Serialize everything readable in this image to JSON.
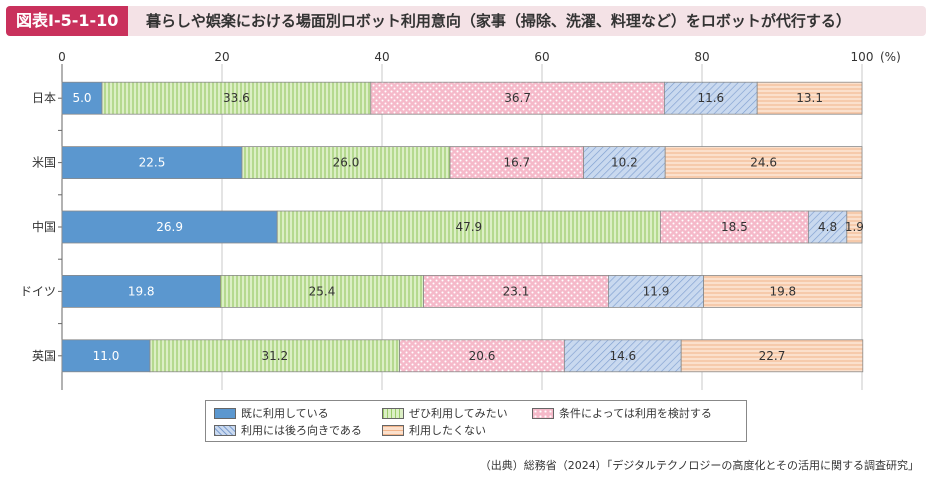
{
  "figure": {
    "label": "図表Ⅰ-5-1-10",
    "title": "暮らしや娯楽における場面別ロボット利用意向（家事（掃除、洗濯、料理など）をロボットが代行する）",
    "source": "（出典）総務省（2024）「デジタルテクノロジーの高度化とその活用に関する調査研究」"
  },
  "chart_data": {
    "type": "bar",
    "orientation": "horizontal",
    "stacked": true,
    "categories": [
      "日本",
      "米国",
      "中国",
      "ドイツ",
      "英国"
    ],
    "xlim": [
      0,
      100
    ],
    "x_ticks": [
      "0",
      "20",
      "40",
      "60",
      "80",
      "100"
    ],
    "x_unit": "(%)",
    "grid": true,
    "legend_position": "bottom",
    "series": [
      {
        "name": "既に利用している",
        "values": [
          5.0,
          22.5,
          26.9,
          19.8,
          11.0
        ],
        "color": "#5b97cf",
        "pattern": "solid"
      },
      {
        "name": "ぜひ利用してみたい",
        "values": [
          33.6,
          26.0,
          47.9,
          25.4,
          31.2
        ],
        "color": "#c9e5a7",
        "pattern": "vertical-lines"
      },
      {
        "name": "条件によっては利用を検討する",
        "values": [
          36.7,
          16.7,
          18.5,
          23.1,
          20.6
        ],
        "color": "#f3b7c6",
        "pattern": "dots"
      },
      {
        "name": "利用には後ろ向きである",
        "values": [
          11.6,
          10.2,
          4.8,
          11.9,
          14.6
        ],
        "color": "#b9cdea",
        "pattern": "diagonal-lines"
      },
      {
        "name": "利用したくない",
        "values": [
          13.1,
          24.6,
          1.9,
          19.8,
          22.7
        ],
        "color": "#f9d2b5",
        "pattern": "horizontal-lines"
      }
    ]
  }
}
